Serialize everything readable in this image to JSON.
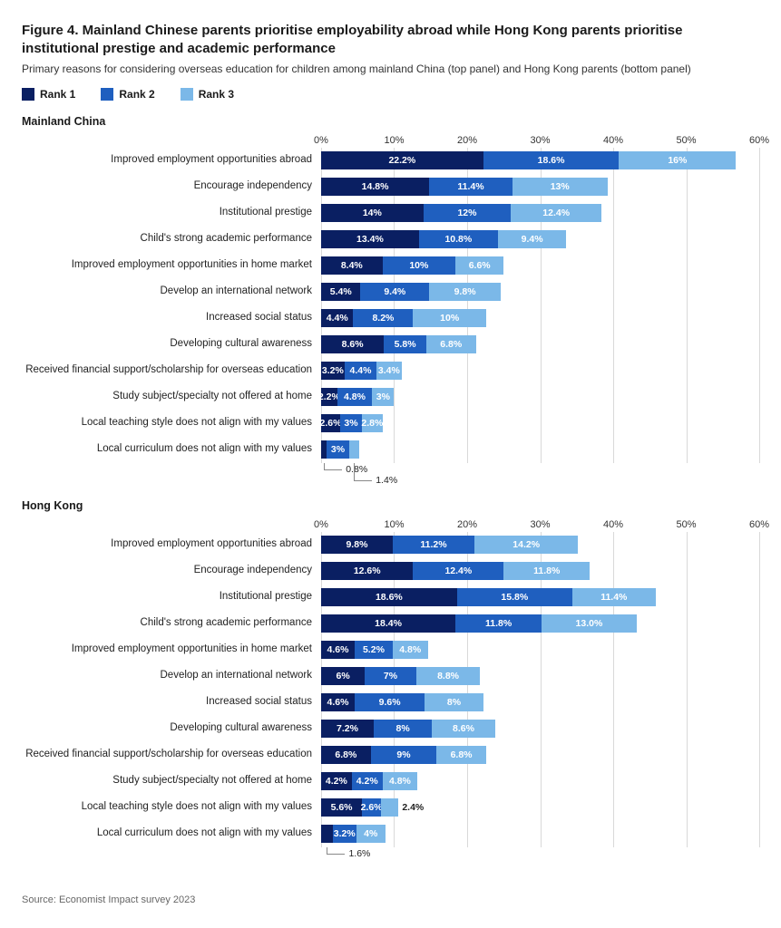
{
  "title": "Figure 4. Mainland Chinese parents prioritise employability abroad while Hong Kong parents prioritise institutional prestige and academic performance",
  "subtitle": "Primary reasons for considering overseas education for children among mainland China (top panel) and Hong Kong parents (bottom panel)",
  "legend": [
    {
      "label": "Rank 1",
      "color": "#0a1f62"
    },
    {
      "label": "Rank 2",
      "color": "#1f5fbf"
    },
    {
      "label": "Rank 3",
      "color": "#7bb8e8"
    }
  ],
  "colors": {
    "rank1": "#0a1f62",
    "rank2": "#1f5fbf",
    "rank3": "#7bb8e8",
    "grid": "#d9d9d9",
    "background": "#ffffff"
  },
  "axis": {
    "min": 0,
    "max": 60,
    "ticks": [
      0,
      10,
      20,
      30,
      40,
      50,
      60
    ],
    "tick_labels": [
      "0%",
      "10%",
      "20%",
      "30%",
      "40%",
      "50%",
      "60%"
    ]
  },
  "panels": [
    {
      "label": "Mainland China",
      "rows": [
        {
          "label": "Improved employment opportunities abroad",
          "values": [
            22.2,
            18.6,
            16
          ],
          "display": [
            "22.2%",
            "18.6%",
            "16%"
          ]
        },
        {
          "label": "Encourage independency",
          "values": [
            14.8,
            11.4,
            13
          ],
          "display": [
            "14.8%",
            "11.4%",
            "13%"
          ]
        },
        {
          "label": "Institutional prestige",
          "values": [
            14,
            12,
            12.4
          ],
          "display": [
            "14%",
            "12%",
            "12.4%"
          ]
        },
        {
          "label": "Child's strong academic performance",
          "values": [
            13.4,
            10.8,
            9.4
          ],
          "display": [
            "13.4%",
            "10.8%",
            "9.4%"
          ]
        },
        {
          "label": "Improved employment opportunities in home market",
          "values": [
            8.4,
            10,
            6.6
          ],
          "display": [
            "8.4%",
            "10%",
            "6.6%"
          ]
        },
        {
          "label": "Develop an international network",
          "values": [
            5.4,
            9.4,
            9.8
          ],
          "display": [
            "5.4%",
            "9.4%",
            "9.8%"
          ]
        },
        {
          "label": "Increased social status",
          "values": [
            4.4,
            8.2,
            10
          ],
          "display": [
            "4.4%",
            "8.2%",
            "10%"
          ]
        },
        {
          "label": "Developing cultural awareness",
          "values": [
            8.6,
            5.8,
            6.8
          ],
          "display": [
            "8.6%",
            "5.8%",
            "6.8%"
          ]
        },
        {
          "label": "Received financial support/scholarship for overseas education",
          "values": [
            3.2,
            4.4,
            3.4
          ],
          "display": [
            "3.2%",
            "4.4%",
            "3.4%"
          ]
        },
        {
          "label": "Study subject/specialty not offered at home",
          "values": [
            2.2,
            4.8,
            3
          ],
          "display": [
            "2.2%",
            "4.8%",
            "3%"
          ]
        },
        {
          "label": "Local teaching style does not align with my values",
          "values": [
            2.6,
            3,
            2.8
          ],
          "display": [
            "2.6%",
            "3%",
            "2.8%"
          ]
        },
        {
          "label": "Local curriculum does not align with my values",
          "values": [
            0.8,
            3,
            1.4
          ],
          "display": [
            "",
            "3%",
            ""
          ],
          "callouts": [
            {
              "text": "0.8%",
              "seg": 0
            },
            {
              "text": "1.4%",
              "seg": 2
            }
          ]
        }
      ]
    },
    {
      "label": "Hong Kong",
      "rows": [
        {
          "label": "Improved employment opportunities abroad",
          "values": [
            9.8,
            11.2,
            14.2
          ],
          "display": [
            "9.8%",
            "11.2%",
            "14.2%"
          ]
        },
        {
          "label": "Encourage independency",
          "values": [
            12.6,
            12.4,
            11.8
          ],
          "display": [
            "12.6%",
            "12.4%",
            "11.8%"
          ]
        },
        {
          "label": "Institutional prestige",
          "values": [
            18.6,
            15.8,
            11.4
          ],
          "display": [
            "18.6%",
            "15.8%",
            "11.4%"
          ]
        },
        {
          "label": "Child's strong academic performance",
          "values": [
            18.4,
            11.8,
            13.0
          ],
          "display": [
            "18.4%",
            "11.8%",
            "13.0%"
          ]
        },
        {
          "label": "Improved employment opportunities in home market",
          "values": [
            4.6,
            5.2,
            4.8
          ],
          "display": [
            "4.6%",
            "5.2%",
            "4.8%"
          ]
        },
        {
          "label": "Develop an international network",
          "values": [
            6,
            7,
            8.8
          ],
          "display": [
            "6%",
            "7%",
            "8.8%"
          ]
        },
        {
          "label": "Increased social status",
          "values": [
            4.6,
            9.6,
            8
          ],
          "display": [
            "4.6%",
            "9.6%",
            "8%"
          ]
        },
        {
          "label": "Developing cultural awareness",
          "values": [
            7.2,
            8,
            8.6
          ],
          "display": [
            "7.2%",
            "8%",
            "8.6%"
          ]
        },
        {
          "label": "Received financial support/scholarship for overseas education",
          "values": [
            6.8,
            9,
            6.8
          ],
          "display": [
            "6.8%",
            "9%",
            "6.8%"
          ]
        },
        {
          "label": "Study subject/specialty not offered at home",
          "values": [
            4.2,
            4.2,
            4.8
          ],
          "display": [
            "4.2%",
            "4.2%",
            "4.8%"
          ]
        },
        {
          "label": "Local teaching style does not align with my values",
          "values": [
            5.6,
            2.6,
            2.4
          ],
          "display": [
            "5.6%",
            "2.6%",
            "2.4%"
          ],
          "outside_last": true
        },
        {
          "label": "Local curriculum does not align with my values",
          "values": [
            1.6,
            3.2,
            4
          ],
          "display": [
            "",
            "3.2%",
            "4%"
          ],
          "callouts": [
            {
              "text": "1.6%",
              "seg": 0
            }
          ]
        }
      ]
    }
  ],
  "source": "Source: Economist Impact survey 2023"
}
